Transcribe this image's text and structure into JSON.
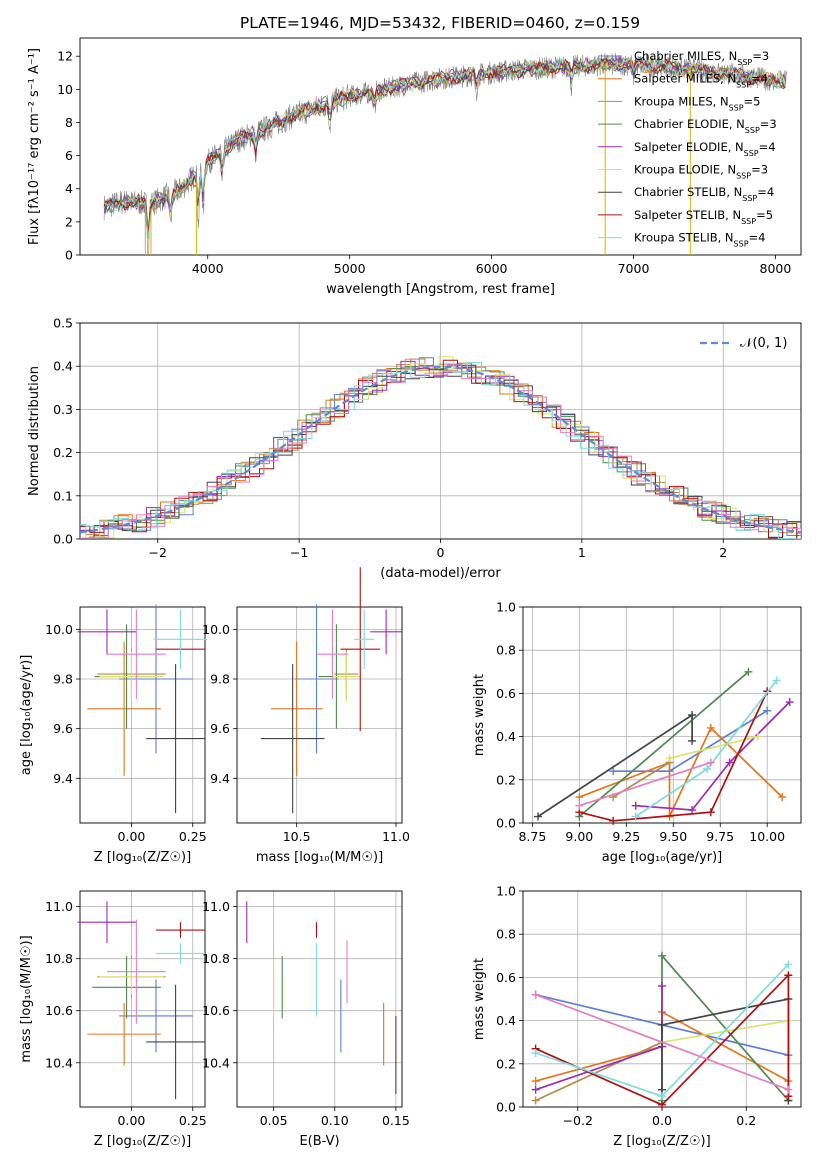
{
  "figure": {
    "title": "PLATE=1946, MJD=53432, FIBERID=0460, z=0.159"
  },
  "colors": {
    "Chabrier MILES": "#5b7fd6",
    "Salpeter MILES": "#e67419",
    "Kroupa MILES": "#b58a4a",
    "Chabrier ELODIE": "#4f8a4f",
    "Salpeter ELODIE": "#9c2bb6",
    "Kroupa ELODIE": "#d9e36a",
    "Chabrier STELIB": "#444444",
    "Salpeter STELIB": "#b01010",
    "Kroupa STELIB": "#7fdbe0",
    "pink": "#e37fbf",
    "spectrum": "#808080",
    "normal": "#5b8bd6"
  },
  "chart_data": [
    {
      "type": "line",
      "name": "spectrum",
      "xlabel": "wavelength [Angstrom, rest frame]",
      "ylabel": "Flux [fλ10⁻¹⁷ erg cm⁻² s⁻¹ A⁻¹]",
      "xlim": [
        3100,
        8180
      ],
      "ylim": [
        0,
        13.1
      ],
      "xticks": [
        "4000",
        "5000",
        "6000",
        "7000",
        "8000"
      ],
      "yticks": [
        "0",
        "2",
        "4",
        "6",
        "8",
        "10",
        "12"
      ],
      "legend_position": "upper right",
      "legend": [
        {
          "label": "Chabrier MILES, N",
          "sub": "SSP",
          "suffix": "=3",
          "color": "#5b7fd6"
        },
        {
          "label": "Salpeter MILES, N",
          "sub": "SSP",
          "suffix": "=4",
          "color": "#e67419"
        },
        {
          "label": "Kroupa MILES, N",
          "sub": "SSP",
          "suffix": "=5",
          "color": "#b58a4a"
        },
        {
          "label": "Chabrier ELODIE, N",
          "sub": "SSP",
          "suffix": "=3",
          "color": "#4f8a4f"
        },
        {
          "label": "Salpeter ELODIE, N",
          "sub": "SSP",
          "suffix": "=4",
          "color": "#9c2bb6"
        },
        {
          "label": "Kroupa ELODIE, N",
          "sub": "SSP",
          "suffix": "=3",
          "color": "#d9e36a"
        },
        {
          "label": "Chabrier STELIB, N",
          "sub": "SSP",
          "suffix": "=4",
          "color": "#444444"
        },
        {
          "label": "Salpeter STELIB, N",
          "sub": "SSP",
          "suffix": "=5",
          "color": "#b01010"
        },
        {
          "label": "Kroupa STELIB, N",
          "sub": "SSP",
          "suffix": "=4",
          "color": "#7fdbe0"
        }
      ],
      "continuum": {
        "x": [
          3270,
          3400,
          3600,
          3800,
          4000,
          4200,
          4400,
          4600,
          4800,
          5000,
          5200,
          5400,
          5600,
          5800,
          6000,
          6200,
          6400,
          6600,
          6800,
          7000,
          7200,
          7400,
          7600,
          7800,
          8000
        ],
        "y": [
          2.9,
          3.2,
          3.1,
          3.9,
          5.6,
          6.9,
          7.6,
          8.4,
          9.0,
          9.6,
          9.9,
          10.3,
          10.6,
          10.8,
          11.0,
          11.2,
          11.3,
          11.4,
          11.5,
          11.5,
          11.4,
          11.2,
          11.0,
          10.8,
          10.5
        ]
      }
    },
    {
      "type": "histogram",
      "name": "residuals",
      "xlabel": "(data-model)/error",
      "ylabel": "Normed distribution",
      "xlim": [
        -2.55,
        2.55
      ],
      "ylim": [
        0,
        0.5
      ],
      "xticks": [
        "−2",
        "−1",
        "0",
        "1",
        "2"
      ],
      "yticks": [
        "0.0",
        "0.1",
        "0.2",
        "0.3",
        "0.4",
        "0.5"
      ],
      "legend_position": "upper right",
      "legend_label": "𝒩(0, 1)",
      "bin_width": 0.1,
      "bin_start": -2.55
    },
    {
      "type": "scatter",
      "name": "age-vs-Z",
      "xlabel": "Z [log₁₀(Z/Z☉)]",
      "ylabel": "age  [log₁₀(age/yr)]",
      "xlim": [
        -0.21,
        0.3
      ],
      "ylim": [
        9.22,
        10.09
      ],
      "xticks": [
        "0.00",
        "0.25"
      ],
      "yticks": [
        "9.4",
        "9.6",
        "9.8",
        "10.0"
      ],
      "points": [
        {
          "color": "#5b7fd6",
          "x": 0.1,
          "xerr": 0.15,
          "y": 9.8,
          "yerr": 0.3
        },
        {
          "color": "#e67419",
          "x": -0.03,
          "xerr": 0.15,
          "y": 9.68,
          "yerr": 0.27
        },
        {
          "color": "#b58a4a",
          "x": 0.0,
          "xerr": 0.14,
          "y": 9.82,
          "yerr": 0.1
        },
        {
          "color": "#4f8a4f",
          "x": -0.02,
          "xerr": 0.13,
          "y": 9.81,
          "yerr": 0.21
        },
        {
          "color": "#9c2bb6",
          "x": -0.1,
          "xerr": 0.12,
          "y": 9.99,
          "yerr": 0.09
        },
        {
          "color": "#d9e36a",
          "x": 0.0,
          "xerr": 0.13,
          "y": 9.81,
          "yerr": 0.1
        },
        {
          "color": "#444444",
          "x": 0.18,
          "xerr": 0.12,
          "y": 9.56,
          "yerr": 0.3
        },
        {
          "color": "#b01010",
          "x": 0.2,
          "xerr": 0.1,
          "y": 9.92,
          "yerr": 0.02
        },
        {
          "color": "#7fdbe0",
          "x": 0.2,
          "xerr": 0.11,
          "y": 9.96,
          "yerr": 0.12
        },
        {
          "color": "#e37fbf",
          "x": 0.02,
          "xerr": 0.12,
          "y": 9.9,
          "yerr": 0.18
        }
      ]
    },
    {
      "type": "scatter",
      "name": "age-vs-mass",
      "xlabel": "mass [log₁₀(M/M☉)]",
      "ylabel": "",
      "xlim": [
        10.2,
        11.03
      ],
      "ylim": [
        9.22,
        10.09
      ],
      "xticks": [
        "10.5",
        "11.0"
      ],
      "yticks": [
        "9.4",
        "9.6",
        "9.8",
        "10.0"
      ],
      "points": [
        {
          "color": "#5b7fd6",
          "x": 10.6,
          "xerr": 0.11,
          "y": 9.8,
          "yerr": 0.3
        },
        {
          "color": "#e67419",
          "x": 10.5,
          "xerr": 0.13,
          "y": 9.68,
          "yerr": 0.27
        },
        {
          "color": "#b58a4a",
          "x": 10.75,
          "xerr": 0.06,
          "y": 9.82,
          "yerr": 0.1
        },
        {
          "color": "#4f8a4f",
          "x": 10.7,
          "xerr": 0.09,
          "y": 9.81,
          "yerr": 0.21
        },
        {
          "color": "#9c2bb6",
          "x": 10.95,
          "xerr": 0.08,
          "y": 9.99,
          "yerr": 0.09
        },
        {
          "color": "#d9e36a",
          "x": 10.75,
          "xerr": 0.07,
          "y": 9.81,
          "yerr": 0.1
        },
        {
          "color": "#444444",
          "x": 10.48,
          "xerr": 0.16,
          "y": 9.56,
          "yerr": 0.3
        },
        {
          "color": "#b01010",
          "x": 10.82,
          "xerr": 0.1,
          "y": 9.92,
          "yerr": 0.33
        },
        {
          "color": "#7fdbe0",
          "x": 10.84,
          "xerr": 0.05,
          "y": 9.96,
          "yerr": 0.12
        },
        {
          "color": "#e37fbf",
          "x": 10.68,
          "xerr": 0.08,
          "y": 9.9,
          "yerr": 0.18
        }
      ]
    },
    {
      "type": "line",
      "name": "weight-vs-age",
      "xlabel": "age  [log₁₀(age/yr)]",
      "ylabel": "mass weight",
      "xlim": [
        8.7,
        10.18
      ],
      "ylim": [
        0,
        1.0
      ],
      "xticks": [
        "8.75",
        "9.00",
        "9.25",
        "9.50",
        "9.75",
        "10.00"
      ],
      "yticks": [
        "0.0",
        "0.2",
        "0.4",
        "0.6",
        "0.8",
        "1.0"
      ],
      "series": [
        {
          "color": "#5b7fd6",
          "x": [
            9.18,
            9.48,
            10.0
          ],
          "y": [
            0.24,
            0.24,
            0.52
          ]
        },
        {
          "color": "#e67419",
          "x": [
            9.0,
            9.48,
            9.48,
            9.7,
            10.08
          ],
          "y": [
            0.12,
            0.28,
            0.03,
            0.44,
            0.12
          ]
        },
        {
          "color": "#b58a4a",
          "x": [
            9.18,
            9.48
          ],
          "y": [
            0.12,
            0.28
          ]
        },
        {
          "color": "#4f8a4f",
          "x": [
            9.0,
            9.9
          ],
          "y": [
            0.03,
            0.7
          ]
        },
        {
          "color": "#9c2bb6",
          "x": [
            9.3,
            9.6,
            9.8,
            10.12
          ],
          "y": [
            0.08,
            0.06,
            0.28,
            0.56
          ]
        },
        {
          "color": "#d9e36a",
          "x": [
            9.48,
            9.95
          ],
          "y": [
            0.3,
            0.4
          ]
        },
        {
          "color": "#444444",
          "x": [
            8.78,
            9.6,
            9.6
          ],
          "y": [
            0.03,
            0.5,
            0.38
          ]
        },
        {
          "color": "#b01010",
          "x": [
            9.0,
            9.18,
            9.7,
            10.0
          ],
          "y": [
            0.05,
            0.01,
            0.05,
            0.61
          ]
        },
        {
          "color": "#7fdbe0",
          "x": [
            9.3,
            9.68,
            10.05
          ],
          "y": [
            0.03,
            0.25,
            0.66
          ]
        },
        {
          "color": "#e37fbf",
          "x": [
            9.0,
            9.7
          ],
          "y": [
            0.08,
            0.28
          ]
        }
      ]
    },
    {
      "type": "scatter",
      "name": "mass-vs-Z",
      "xlabel": "Z [log₁₀(Z/Z☉)]",
      "ylabel": "mass [log₁₀(M/M☉)]",
      "xlim": [
        -0.21,
        0.3
      ],
      "ylim": [
        10.23,
        11.06
      ],
      "xticks": [
        "0.00",
        "0.25"
      ],
      "yticks": [
        "10.4",
        "10.6",
        "10.8",
        "11.0"
      ],
      "points": [
        {
          "color": "#5b7fd6",
          "x": 0.1,
          "xerr": 0.15,
          "y": 10.58,
          "yerr": 0.14
        },
        {
          "color": "#e67419",
          "x": -0.03,
          "xerr": 0.15,
          "y": 10.51,
          "yerr": 0.12
        },
        {
          "color": "#b58a4a",
          "x": 0.0,
          "xerr": 0.14,
          "y": 10.73,
          "yerr": 0.08
        },
        {
          "color": "#4f8a4f",
          "x": -0.02,
          "xerr": 0.14,
          "y": 10.69,
          "yerr": 0.12
        },
        {
          "color": "#9c2bb6",
          "x": -0.1,
          "xerr": 0.12,
          "y": 10.94,
          "yerr": 0.08
        },
        {
          "color": "#d9e36a",
          "x": 0.0,
          "xerr": 0.13,
          "y": 10.73,
          "yerr": 0.07
        },
        {
          "color": "#444444",
          "x": 0.18,
          "xerr": 0.12,
          "y": 10.48,
          "yerr": 0.22
        },
        {
          "color": "#b01010",
          "x": 0.2,
          "xerr": 0.1,
          "y": 10.91,
          "yerr": 0.03
        },
        {
          "color": "#7fdbe0",
          "x": 0.2,
          "xerr": 0.1,
          "y": 10.82,
          "yerr": 0.04
        },
        {
          "color": "#e37fbf",
          "x": 0.02,
          "xerr": 0.12,
          "y": 10.75,
          "yerr": 0.2
        }
      ]
    },
    {
      "type": "scatter",
      "name": "mass-vs-EBV",
      "xlabel": "E(B-V)",
      "ylabel": "",
      "xlim": [
        0.02,
        0.155
      ],
      "ylim": [
        10.23,
        11.06
      ],
      "xticks": [
        "0.05",
        "0.10",
        "0.15"
      ],
      "yticks": [
        "10.4",
        "10.6",
        "10.8",
        "11.0"
      ],
      "points": [
        {
          "color": "#5b7fd6",
          "x": 0.105,
          "y": 10.58,
          "yerr": 0.14
        },
        {
          "color": "#e67419",
          "x": 0.14,
          "y": 10.51,
          "yerr": 0.12
        },
        {
          "color": "#4f8a4f",
          "x": 0.057,
          "y": 10.69,
          "yerr": 0.12
        },
        {
          "color": "#9c2bb6",
          "x": 0.028,
          "y": 10.94,
          "yerr": 0.08
        },
        {
          "color": "#d9e36a",
          "x": 0.05,
          "y": 10.68,
          "yerr": 0.1
        },
        {
          "color": "#444444",
          "x": 0.15,
          "y": 10.43,
          "yerr": 0.15
        },
        {
          "color": "#b01010",
          "x": 0.085,
          "y": 10.91,
          "yerr": 0.03
        },
        {
          "color": "#7fdbe0",
          "x": 0.085,
          "y": 10.72,
          "yerr": 0.14
        },
        {
          "color": "#e37fbf",
          "x": 0.11,
          "y": 10.75,
          "yerr": 0.12
        }
      ]
    },
    {
      "type": "line",
      "name": "weight-vs-Z",
      "xlabel": "Z [log₁₀(Z/Z☉)]",
      "ylabel": "mass weight",
      "xlim": [
        -0.33,
        0.33
      ],
      "ylim": [
        0,
        1.0
      ],
      "xticks": [
        "−0.2",
        "0.0",
        "0.2"
      ],
      "yticks": [
        "0.0",
        "0.2",
        "0.4",
        "0.6",
        "0.8",
        "1.0"
      ],
      "series": [
        {
          "color": "#5b7fd6",
          "x": [
            -0.3,
            0.3
          ],
          "y": [
            0.52,
            0.24
          ]
        },
        {
          "color": "#e67419",
          "x": [
            -0.3,
            0.0,
            0.0,
            0.3
          ],
          "y": [
            0.12,
            0.28,
            0.44,
            0.12
          ]
        },
        {
          "color": "#b58a4a",
          "x": [
            -0.3,
            0.0
          ],
          "y": [
            0.03,
            0.3
          ]
        },
        {
          "color": "#4f8a4f",
          "x": [
            0.0,
            0.0,
            0.3
          ],
          "y": [
            0.03,
            0.7,
            0.03
          ]
        },
        {
          "color": "#9c2bb6",
          "x": [
            -0.3,
            0.0,
            0.0
          ],
          "y": [
            0.08,
            0.28,
            0.56
          ]
        },
        {
          "color": "#d9e36a",
          "x": [
            0.0,
            0.3
          ],
          "y": [
            0.3,
            0.4
          ]
        },
        {
          "color": "#444444",
          "x": [
            0.0,
            0.0,
            0.3,
            0.3
          ],
          "y": [
            0.08,
            0.38,
            0.5,
            0.03
          ]
        },
        {
          "color": "#b01010",
          "x": [
            -0.3,
            0.0,
            0.3,
            0.3
          ],
          "y": [
            0.27,
            0.01,
            0.61,
            0.05
          ]
        },
        {
          "color": "#7fdbe0",
          "x": [
            -0.3,
            0.0,
            0.3
          ],
          "y": [
            0.25,
            0.05,
            0.66
          ]
        },
        {
          "color": "#e37fbf",
          "x": [
            -0.3,
            0.3
          ],
          "y": [
            0.52,
            0.08
          ]
        }
      ]
    }
  ]
}
